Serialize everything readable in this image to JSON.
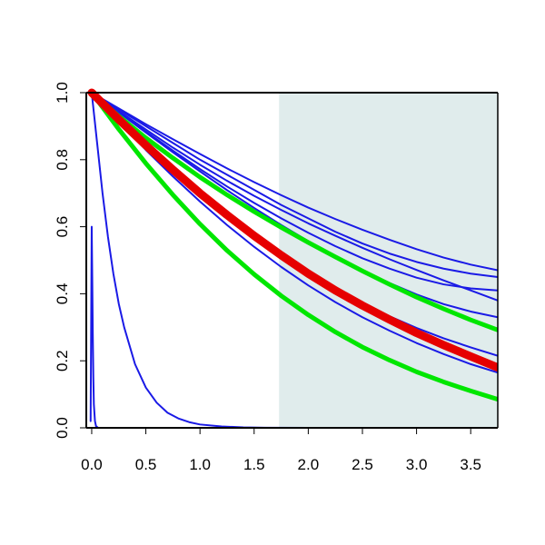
{
  "chart_data": {
    "type": "line",
    "title": "",
    "xlabel": "",
    "ylabel": "",
    "xlim": [
      -0.05,
      3.75
    ],
    "ylim": [
      0,
      1
    ],
    "grid": false,
    "shaded_region": {
      "x_from": 1.73,
      "x_to": 3.75,
      "color": "#e0ecec"
    },
    "x_ticks": [
      0.0,
      0.5,
      1.0,
      1.5,
      2.0,
      2.5,
      3.0,
      3.5
    ],
    "x_tick_labels": [
      "0.0",
      "0.5",
      "1.0",
      "1.5",
      "2.0",
      "2.5",
      "3.0",
      "3.5"
    ],
    "y_ticks": [
      0.0,
      0.2,
      0.4,
      0.6,
      0.8,
      1.0
    ],
    "y_tick_labels": [
      "0.0",
      "0.2",
      "0.4",
      "0.6",
      "0.8",
      "1.0"
    ],
    "series": [
      {
        "color": "#1a1ae6",
        "style": "thin",
        "x": [
          0,
          0.25,
          0.5,
          0.75,
          1.0,
          1.25,
          1.5,
          1.75,
          2.0,
          2.25,
          2.5,
          2.75,
          3.0,
          3.25,
          3.5,
          3.75
        ],
        "y": [
          1.0,
          0.953,
          0.906,
          0.861,
          0.817,
          0.774,
          0.733,
          0.694,
          0.657,
          0.623,
          0.591,
          0.561,
          0.533,
          0.508,
          0.487,
          0.47
        ]
      },
      {
        "color": "#1a1ae6",
        "style": "thin",
        "x": [
          0,
          0.25,
          0.5,
          0.75,
          1.0,
          1.25,
          1.5,
          1.75,
          2.0,
          2.25,
          2.5,
          2.75,
          3.0,
          3.25,
          3.5,
          3.75
        ],
        "y": [
          1.0,
          0.95,
          0.9,
          0.85,
          0.8,
          0.755,
          0.71,
          0.665,
          0.625,
          0.585,
          0.55,
          0.52,
          0.495,
          0.475,
          0.46,
          0.45
        ]
      },
      {
        "color": "#1a1ae6",
        "style": "thin",
        "x": [
          0,
          0.25,
          0.5,
          0.75,
          1.0,
          1.25,
          1.5,
          1.75,
          2.0,
          2.25,
          2.5,
          2.75,
          3.0,
          3.25,
          3.5,
          3.75
        ],
        "y": [
          1.0,
          0.945,
          0.89,
          0.836,
          0.785,
          0.737,
          0.692,
          0.65,
          0.61,
          0.573,
          0.537,
          0.503,
          0.471,
          0.44,
          0.41,
          0.38
        ]
      },
      {
        "color": "#1a1ae6",
        "style": "thin",
        "x": [
          0,
          0.25,
          0.5,
          0.75,
          1.0,
          1.25,
          1.5,
          1.75,
          2.0,
          2.25,
          2.5,
          2.75,
          3.0,
          3.25,
          3.5,
          3.75
        ],
        "y": [
          1.0,
          0.942,
          0.884,
          0.827,
          0.772,
          0.72,
          0.671,
          0.625,
          0.582,
          0.542,
          0.506,
          0.475,
          0.448,
          0.428,
          0.416,
          0.41
        ]
      },
      {
        "color": "#1a1ae6",
        "style": "thin",
        "x": [
          0,
          0.25,
          0.5,
          0.75,
          1.0,
          1.25,
          1.5,
          1.75,
          2.0,
          2.25,
          2.5,
          2.75,
          3.0,
          3.25,
          3.5,
          3.75
        ],
        "y": [
          1.0,
          0.941,
          0.881,
          0.822,
          0.765,
          0.709,
          0.656,
          0.605,
          0.557,
          0.512,
          0.47,
          0.432,
          0.398,
          0.369,
          0.347,
          0.33
        ]
      },
      {
        "color": "#1a1ae6",
        "style": "thin",
        "x": [
          0,
          0.25,
          0.5,
          0.75,
          1.0,
          1.25,
          1.5,
          1.75,
          2.0,
          2.25,
          2.5,
          2.75,
          3.0,
          3.25,
          3.5,
          3.75
        ],
        "y": [
          1.0,
          0.923,
          0.848,
          0.776,
          0.706,
          0.64,
          0.578,
          0.52,
          0.466,
          0.417,
          0.373,
          0.333,
          0.298,
          0.267,
          0.24,
          0.215
        ]
      },
      {
        "color": "#1a1ae6",
        "style": "thin",
        "x": [
          0,
          0.25,
          0.5,
          0.75,
          1.0,
          1.25,
          1.5,
          1.75,
          2.0,
          2.25,
          2.5,
          2.75,
          3.0,
          3.25,
          3.5,
          3.75
        ],
        "y": [
          1.0,
          0.913,
          0.829,
          0.75,
          0.675,
          0.605,
          0.54,
          0.48,
          0.425,
          0.375,
          0.33,
          0.29,
          0.253,
          0.22,
          0.19,
          0.165
        ]
      },
      {
        "color": "#1a1ae6",
        "style": "thin",
        "x": [
          0,
          0.05,
          0.1,
          0.15,
          0.2,
          0.25,
          0.3,
          0.4,
          0.5,
          0.6,
          0.7,
          0.8,
          0.9,
          1.0,
          1.2,
          1.4,
          1.6,
          2.0,
          3.75
        ],
        "y": [
          1.0,
          0.85,
          0.7,
          0.57,
          0.46,
          0.37,
          0.3,
          0.19,
          0.12,
          0.075,
          0.045,
          0.028,
          0.017,
          0.01,
          0.004,
          0.0015,
          0.0005,
          0.0,
          0.0
        ]
      },
      {
        "color": "#1a1ae6",
        "style": "thin",
        "x": [
          -0.01,
          0.0,
          0.005,
          0.01,
          0.015,
          0.02,
          0.03,
          0.04,
          0.06,
          0.1,
          3.75
        ],
        "y": [
          0.02,
          0.6,
          0.45,
          0.28,
          0.15,
          0.07,
          0.02,
          0.005,
          0.0,
          0.0,
          0.0
        ]
      },
      {
        "color": "#00e600",
        "style": "thick",
        "x": [
          0,
          0.25,
          0.5,
          0.75,
          1.0,
          1.25,
          1.5,
          1.75,
          2.0,
          2.25,
          2.5,
          2.75,
          3.0,
          3.25,
          3.5,
          3.75
        ],
        "y": [
          1.0,
          0.93,
          0.865,
          0.805,
          0.748,
          0.695,
          0.645,
          0.598,
          0.553,
          0.51,
          0.468,
          0.428,
          0.39,
          0.355,
          0.322,
          0.292
        ]
      },
      {
        "color": "#00e600",
        "style": "thick",
        "x": [
          0,
          0.25,
          0.5,
          0.75,
          1.0,
          1.25,
          1.5,
          1.75,
          2.0,
          2.25,
          2.5,
          2.75,
          3.0,
          3.25,
          3.5,
          3.75
        ],
        "y": [
          1.0,
          0.891,
          0.789,
          0.695,
          0.608,
          0.529,
          0.458,
          0.394,
          0.337,
          0.286,
          0.241,
          0.202,
          0.167,
          0.137,
          0.11,
          0.085
        ]
      },
      {
        "color": "#e60000",
        "style": "bold",
        "x": [
          0,
          0.25,
          0.5,
          0.75,
          1.0,
          1.25,
          1.5,
          1.75,
          2.0,
          2.25,
          2.5,
          2.75,
          3.0,
          3.25,
          3.5,
          3.75
        ],
        "y": [
          1.0,
          0.92,
          0.843,
          0.77,
          0.7,
          0.635,
          0.573,
          0.515,
          0.46,
          0.41,
          0.365,
          0.323,
          0.283,
          0.247,
          0.213,
          0.18
        ]
      }
    ]
  }
}
